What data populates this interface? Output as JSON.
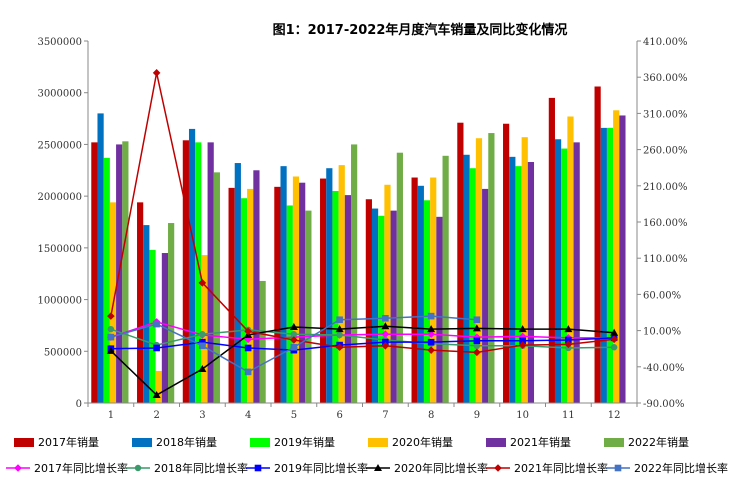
{
  "chart_data": {
    "type": "bar+line",
    "title": "图1：2017-2022年月度汽车销量及同比变化情况",
    "categories": [
      "1",
      "2",
      "3",
      "4",
      "5",
      "6",
      "7",
      "8",
      "9",
      "10",
      "11",
      "12"
    ],
    "y_left": {
      "min": 0,
      "max": 3500000,
      "step": 500000,
      "ticks": [
        "0",
        "500000",
        "1000000",
        "1500000",
        "2000000",
        "2500000",
        "3000000",
        "3500000"
      ]
    },
    "y_right": {
      "min": -90,
      "max": 410,
      "step": 50,
      "ticks": [
        "-90.00%",
        "-40.00%",
        "10.00%",
        "60.00%",
        "110.00%",
        "160.00%",
        "210.00%",
        "260.00%",
        "310.00%",
        "360.00%",
        "410.00%"
      ]
    },
    "bar_series": [
      {
        "name": "2017年销量",
        "color": "#C00000",
        "values": [
          2520000,
          1940000,
          2540000,
          2080000,
          2090000,
          2170000,
          1970000,
          2180000,
          2710000,
          2700000,
          2950000,
          3060000
        ]
      },
      {
        "name": "2018年销量",
        "color": "#0070C0",
        "values": [
          2800000,
          1720000,
          2650000,
          2320000,
          2290000,
          2270000,
          1880000,
          2100000,
          2400000,
          2380000,
          2550000,
          2660000
        ]
      },
      {
        "name": "2019年销量",
        "color": "#00FF00",
        "values": [
          2370000,
          1480000,
          2520000,
          1980000,
          1910000,
          2050000,
          1810000,
          1960000,
          2270000,
          2290000,
          2460000,
          2660000
        ]
      },
      {
        "name": "2020年销量",
        "color": "#FFC000",
        "values": [
          1940000,
          310000,
          1430000,
          2070000,
          2190000,
          2300000,
          2110000,
          2180000,
          2560000,
          2570000,
          2770000,
          2830000
        ]
      },
      {
        "name": "2021年销量",
        "color": "#7030A0",
        "values": [
          2500000,
          1450000,
          2520000,
          2250000,
          2130000,
          2010000,
          1860000,
          1800000,
          2070000,
          2330000,
          2520000,
          2780000
        ]
      },
      {
        "name": "2022年销量",
        "color": "#70AD47",
        "values": [
          2530000,
          1740000,
          2230000,
          1180000,
          1860000,
          2500000,
          2420000,
          2390000,
          2610000,
          null,
          null,
          null
        ]
      }
    ],
    "line_series": [
      {
        "name": "2017年同比增长率",
        "color": "#FF00FF",
        "marker": "diamond",
        "values": [
          1,
          22,
          4,
          -2,
          1,
          4,
          5,
          5,
          1,
          2,
          0,
          0
        ]
      },
      {
        "name": "2018年同比增长率",
        "color": "#3A9A6A",
        "marker": "circle",
        "values": [
          12,
          -10,
          5,
          11,
          5,
          4,
          -3,
          -8,
          -11,
          -11,
          -14,
          -13
        ]
      },
      {
        "name": "2019年同比增长率",
        "color": "#0000FF",
        "marker": "square",
        "values": [
          -15,
          -14,
          -6,
          -14,
          -17,
          -10,
          -6,
          -6,
          -4,
          -4,
          -3,
          0
        ]
      },
      {
        "name": "2020年同比增长率",
        "color": "#000000",
        "marker": "triangle",
        "values": [
          -18,
          -79,
          -43,
          4,
          15,
          12,
          16,
          12,
          13,
          12,
          12,
          7
        ]
      },
      {
        "name": "2021年同比增长率",
        "color": "#C00000",
        "marker": "diamond",
        "values": [
          30,
          366,
          76,
          9,
          -3,
          -13,
          -11,
          -17,
          -20,
          -10,
          -9,
          -2
        ]
      },
      {
        "name": "2022年同比增长率",
        "color": "#4472C4",
        "marker": "square",
        "values": [
          1,
          19,
          -11,
          -47,
          -13,
          25,
          27,
          30,
          25,
          null,
          null,
          null
        ]
      }
    ],
    "legend": "bottom",
    "grid": false
  }
}
